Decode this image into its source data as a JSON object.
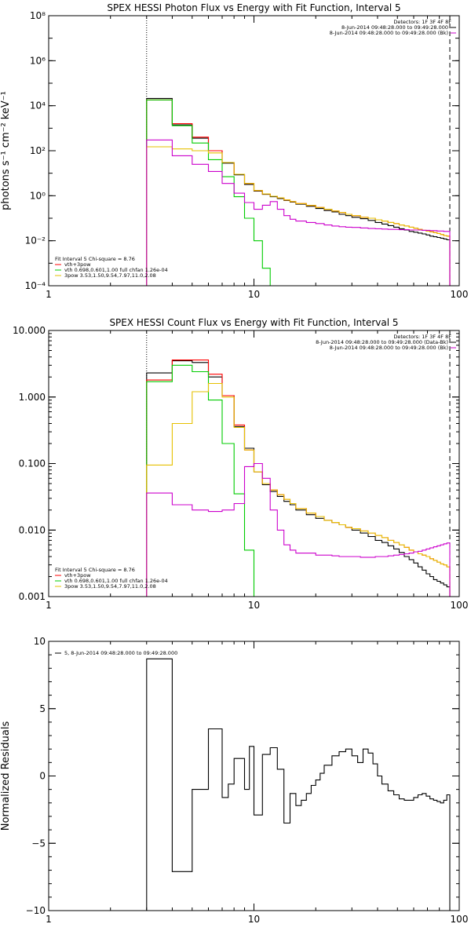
{
  "chart_data": [
    {
      "type": "line",
      "title": "SPEX HESSI Photon Flux vs Energy with Fit Function, Interval 5",
      "xlabel": "",
      "ylabel": "photons s⁻¹ cm⁻² keV⁻¹",
      "xscale": "log",
      "yscale": "log",
      "xlim": [
        1,
        100
      ],
      "ylim": [
        0.0001,
        100000000
      ],
      "xticks": [
        {
          "v": 1,
          "label": "1"
        },
        {
          "v": 10,
          "label": "10"
        },
        {
          "v": 100,
          "label": "100"
        }
      ],
      "yticks": [
        {
          "v": 0.0001,
          "label": "10⁻⁴"
        },
        {
          "v": 0.01,
          "label": "10⁻²"
        },
        {
          "v": 1,
          "label": "10⁰"
        },
        {
          "v": 100,
          "label": "10²"
        },
        {
          "v": 10000,
          "label": "10⁴"
        },
        {
          "v": 1000000,
          "label": "10⁶"
        },
        {
          "v": 100000000,
          "label": "10⁸"
        }
      ],
      "vlines": [
        {
          "x": 3,
          "style": "dotted"
        },
        {
          "x": 90,
          "style": "dashed"
        }
      ],
      "legend_left": {
        "header": "Fit Interval 5   Chi-square = 8.76",
        "entries": [
          {
            "label": "vth+3pow",
            "color": "#ff0000"
          },
          {
            "label": "vth 0.698,0.601,1.00  full chfan 1.26e-04",
            "color": "#00cc00"
          },
          {
            "label": "3pow 3.53,1.50,9.54,7.97,11.0,2.08",
            "color": "#e6c000"
          }
        ]
      },
      "legend_right": {
        "header": "Detectors: 1F 3F 4F 8F",
        "entries": [
          {
            "label": "8-Jun-2014 09:48:28.000 to 09:49:28.000",
            "color": "#000000"
          },
          {
            "label": "8-Jun-2014 09:48:28.000 to 09:49:28.000 (Bk)",
            "color": "#cc00cc"
          }
        ]
      },
      "edges": [
        3,
        4,
        5,
        6,
        7,
        8,
        9,
        10,
        11,
        12,
        13,
        14,
        15,
        16,
        18,
        20,
        22,
        24,
        26,
        28,
        30,
        33,
        36,
        39,
        42,
        45,
        48,
        51,
        54,
        57,
        60,
        63,
        66,
        69,
        72,
        75,
        78,
        81,
        84,
        87,
        90
      ],
      "series": [
        {
          "name": "Data",
          "color": "#000000",
          "values": [
            21000,
            1400,
            360,
            100,
            28,
            8.5,
            3.2,
            1.6,
            1.15,
            0.9,
            0.75,
            0.62,
            0.52,
            0.42,
            0.34,
            0.27,
            0.22,
            0.19,
            0.15,
            0.13,
            0.11,
            0.095,
            0.08,
            0.065,
            0.055,
            0.047,
            0.04,
            0.034,
            0.03,
            0.026,
            0.024,
            0.022,
            0.02,
            0.018,
            0.016,
            0.015,
            0.014,
            0.013,
            0.012,
            0.011
          ]
        },
        {
          "name": "vth+3pow",
          "color": "#ff0000",
          "values": [
            18000,
            1600,
            400,
            100,
            30,
            9,
            3.5,
            1.7,
            1.2,
            0.95,
            0.8,
            0.65,
            0.55,
            0.45,
            0.37,
            0.3,
            0.25,
            0.21,
            0.18,
            0.15,
            0.13,
            0.11,
            0.1,
            0.085,
            0.075,
            0.065,
            0.058,
            0.05,
            0.045,
            0.04,
            0.036,
            0.032,
            0.029,
            0.027,
            0.025,
            0.023,
            0.021,
            0.019,
            0.017,
            0.016
          ]
        },
        {
          "name": "vth",
          "color": "#00cc00",
          "values": [
            18000,
            1300,
            220,
            40,
            7,
            0.9,
            0.1,
            0.01,
            0.0006,
            3e-05
          ]
        },
        {
          "name": "3pow",
          "color": "#e6c000",
          "values": [
            150,
            120,
            100,
            80,
            30,
            9,
            3.5,
            1.7,
            1.2,
            0.95,
            0.8,
            0.65,
            0.55,
            0.45,
            0.37,
            0.3,
            0.25,
            0.21,
            0.18,
            0.15,
            0.13,
            0.11,
            0.1,
            0.085,
            0.075,
            0.065,
            0.058,
            0.05,
            0.045,
            0.04,
            0.036,
            0.032,
            0.029,
            0.027,
            0.025,
            0.023,
            0.021,
            0.019,
            0.017,
            0.016
          ]
        },
        {
          "name": "Background",
          "color": "#cc00cc",
          "values": [
            300,
            60,
            25,
            12,
            3.5,
            1.3,
            0.5,
            0.25,
            0.38,
            0.55,
            0.25,
            0.13,
            0.09,
            0.075,
            0.065,
            0.058,
            0.05,
            0.045,
            0.042,
            0.04,
            0.039,
            0.037,
            0.035,
            0.034,
            0.033,
            0.032,
            0.032,
            0.031,
            0.031,
            0.03,
            0.03,
            0.03,
            0.029,
            0.029,
            0.028,
            0.028,
            0.027,
            0.027,
            0.026,
            0.026
          ]
        }
      ]
    },
    {
      "type": "line",
      "title": "SPEX HESSI Count Flux vs Energy with Fit Function, Interval 5",
      "xlabel": "",
      "ylabel": "",
      "xscale": "log",
      "yscale": "log",
      "xlim": [
        1,
        100
      ],
      "ylim": [
        0.001,
        10
      ],
      "xticks": [
        {
          "v": 1,
          "label": "1"
        },
        {
          "v": 10,
          "label": "10"
        },
        {
          "v": 100,
          "label": "100"
        }
      ],
      "yticks": [
        {
          "v": 0.001,
          "label": "0.001"
        },
        {
          "v": 0.01,
          "label": "0.010"
        },
        {
          "v": 0.1,
          "label": "0.100"
        },
        {
          "v": 1,
          "label": "1.000"
        },
        {
          "v": 10,
          "label": "10.000"
        }
      ],
      "vlines": [
        {
          "x": 3,
          "style": "dotted"
        },
        {
          "x": 90,
          "style": "dashed"
        }
      ],
      "legend_left": {
        "header": "Fit Interval 5   Chi-square = 8.76",
        "entries": [
          {
            "label": "vth+3pow",
            "color": "#ff0000"
          },
          {
            "label": "vth 0.698,0.601,1.00  full chfan 1.26e-04",
            "color": "#00cc00"
          },
          {
            "label": "3pow 3.53,1.50,9.54,7.97,11.0,2.08",
            "color": "#e6c000"
          }
        ]
      },
      "legend_right": {
        "header": "Detectors: 1F 3F 4F 8F",
        "entries": [
          {
            "label": "8-Jun-2014 09:48:28.000 to 09:49:28.000 (Data-Bk)",
            "color": "#000000"
          },
          {
            "label": "8-Jun-2014 09:48:28.000 to 09:49:28.000 (Bk)",
            "color": "#cc00cc"
          }
        ]
      },
      "edges": [
        3,
        4,
        5,
        6,
        7,
        8,
        9,
        10,
        11,
        12,
        13,
        14,
        15,
        16,
        18,
        20,
        22,
        24,
        26,
        28,
        30,
        33,
        36,
        39,
        42,
        45,
        48,
        51,
        54,
        57,
        60,
        63,
        66,
        69,
        72,
        75,
        78,
        81,
        84,
        87,
        90
      ],
      "series": [
        {
          "name": "Data-Bk",
          "color": "#000000",
          "values": [
            2.3,
            3.5,
            3.3,
            2.0,
            1.05,
            0.36,
            0.17,
            0.075,
            0.048,
            0.038,
            0.032,
            0.027,
            0.024,
            0.02,
            0.017,
            0.015,
            0.014,
            0.013,
            0.012,
            0.011,
            0.01,
            0.009,
            0.008,
            0.007,
            0.0065,
            0.0058,
            0.0052,
            0.0046,
            0.004,
            0.0036,
            0.0032,
            0.0028,
            0.0025,
            0.0022,
            0.002,
            0.0018,
            0.0017,
            0.0016,
            0.0015,
            0.0014
          ]
        },
        {
          "name": "vth+3pow",
          "color": "#ff0000",
          "values": [
            1.8,
            3.6,
            3.6,
            2.2,
            1.05,
            0.38,
            0.16,
            0.075,
            0.05,
            0.04,
            0.034,
            0.029,
            0.025,
            0.021,
            0.018,
            0.016,
            0.014,
            0.013,
            0.012,
            0.011,
            0.0105,
            0.0097,
            0.009,
            0.0083,
            0.0077,
            0.007,
            0.0065,
            0.006,
            0.0055,
            0.005,
            0.0047,
            0.0044,
            0.0042,
            0.004,
            0.0037,
            0.0035,
            0.0033,
            0.0031,
            0.003,
            0.0028
          ]
        },
        {
          "name": "vth",
          "color": "#00cc00",
          "values": [
            1.7,
            3.0,
            2.4,
            0.9,
            0.2,
            0.035,
            0.005,
            0.0005
          ]
        },
        {
          "name": "3pow",
          "color": "#e6c000",
          "values": [
            0.095,
            0.4,
            1.2,
            1.6,
            1.0,
            0.35,
            0.16,
            0.075,
            0.05,
            0.04,
            0.034,
            0.029,
            0.025,
            0.021,
            0.018,
            0.016,
            0.014,
            0.013,
            0.012,
            0.011,
            0.0105,
            0.0097,
            0.009,
            0.0083,
            0.0077,
            0.007,
            0.0065,
            0.006,
            0.0055,
            0.005,
            0.0047,
            0.0044,
            0.0042,
            0.004,
            0.0037,
            0.0035,
            0.0033,
            0.0031,
            0.003,
            0.0028
          ]
        },
        {
          "name": "Bk",
          "color": "#cc00cc",
          "values": [
            0.036,
            0.024,
            0.02,
            0.019,
            0.02,
            0.025,
            0.09,
            0.1,
            0.06,
            0.02,
            0.01,
            0.006,
            0.005,
            0.0045,
            0.0045,
            0.0042,
            0.0042,
            0.0041,
            0.004,
            0.004,
            0.004,
            0.0039,
            0.0039,
            0.004,
            0.004,
            0.0041,
            0.0042,
            0.0043,
            0.0044,
            0.0045,
            0.0047,
            0.0048,
            0.005,
            0.0052,
            0.0054,
            0.0056,
            0.0058,
            0.006,
            0.0062,
            0.0064
          ]
        }
      ]
    },
    {
      "type": "line",
      "title": "",
      "xlabel": "",
      "ylabel": "Normalized Residuals",
      "xscale": "log",
      "yscale": "linear",
      "xlim": [
        1,
        100
      ],
      "ylim": [
        -10,
        10
      ],
      "xticks": [
        {
          "v": 1,
          "label": "1"
        },
        {
          "v": 10,
          "label": "10"
        },
        {
          "v": 100,
          "label": "100"
        }
      ],
      "yticks": [
        {
          "v": -10,
          "label": "−10"
        },
        {
          "v": -5,
          "label": "−5"
        },
        {
          "v": 0,
          "label": "0"
        },
        {
          "v": 5,
          "label": "5"
        },
        {
          "v": 10,
          "label": "10"
        }
      ],
      "vlines": [],
      "legend_left": {
        "header": "",
        "entries": [
          {
            "label": "5,  8-Jun-2014 09:48:28.000 to 09:49:28.000",
            "color": "#000000"
          }
        ]
      },
      "legend_right": null,
      "edges": [
        3,
        4,
        5,
        6,
        7,
        7.5,
        8,
        9,
        9.5,
        10,
        11,
        12,
        13,
        14,
        15,
        16,
        17,
        18,
        19,
        20,
        21,
        22,
        24,
        26,
        28,
        30,
        32,
        34,
        36,
        38,
        40,
        42,
        45,
        48,
        51,
        54,
        57,
        60,
        63,
        66,
        69,
        72,
        75,
        78,
        81,
        84,
        87,
        90
      ],
      "series": [
        {
          "name": "residuals",
          "color": "#000000",
          "values": [
            8.7,
            -7.1,
            -1.0,
            3.5,
            -1.6,
            -0.6,
            1.3,
            -1.0,
            2.2,
            -2.9,
            1.6,
            2.1,
            0.5,
            -3.5,
            -1.3,
            -2.2,
            -1.8,
            -1.3,
            -0.7,
            -0.3,
            0.2,
            0.8,
            1.5,
            1.8,
            2.0,
            1.5,
            1.0,
            2.0,
            1.7,
            0.9,
            0.0,
            -0.6,
            -1.1,
            -1.4,
            -1.7,
            -1.8,
            -1.8,
            -1.6,
            -1.4,
            -1.3,
            -1.5,
            -1.7,
            -1.8,
            -1.9,
            -2.0,
            -1.8,
            -1.4
          ]
        }
      ]
    }
  ]
}
